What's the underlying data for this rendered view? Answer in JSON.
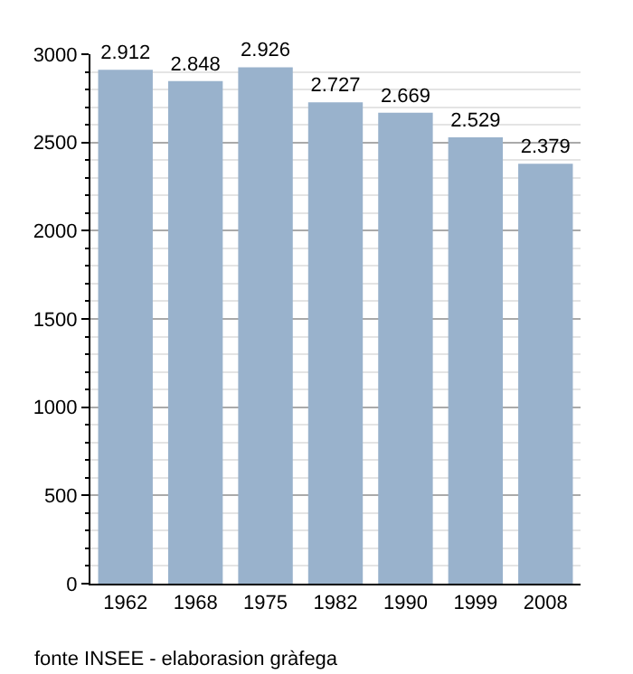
{
  "chart_data": {
    "type": "bar",
    "categories": [
      "1962",
      "1968",
      "1975",
      "1982",
      "1990",
      "1999",
      "2008"
    ],
    "values": [
      2912,
      2848,
      2926,
      2727,
      2669,
      2529,
      2379
    ],
    "value_labels": [
      "2.912",
      "2.848",
      "2.926",
      "2.727",
      "2.669",
      "2.529",
      "2.379"
    ],
    "color": "#99b2cc",
    "ylim": [
      0,
      3000
    ],
    "yticks": [
      0,
      500,
      1000,
      1500,
      2000,
      2500,
      3000
    ],
    "grid": "y",
    "annotations": [
      "fonte INSEE - elaborasion gràfega"
    ]
  }
}
